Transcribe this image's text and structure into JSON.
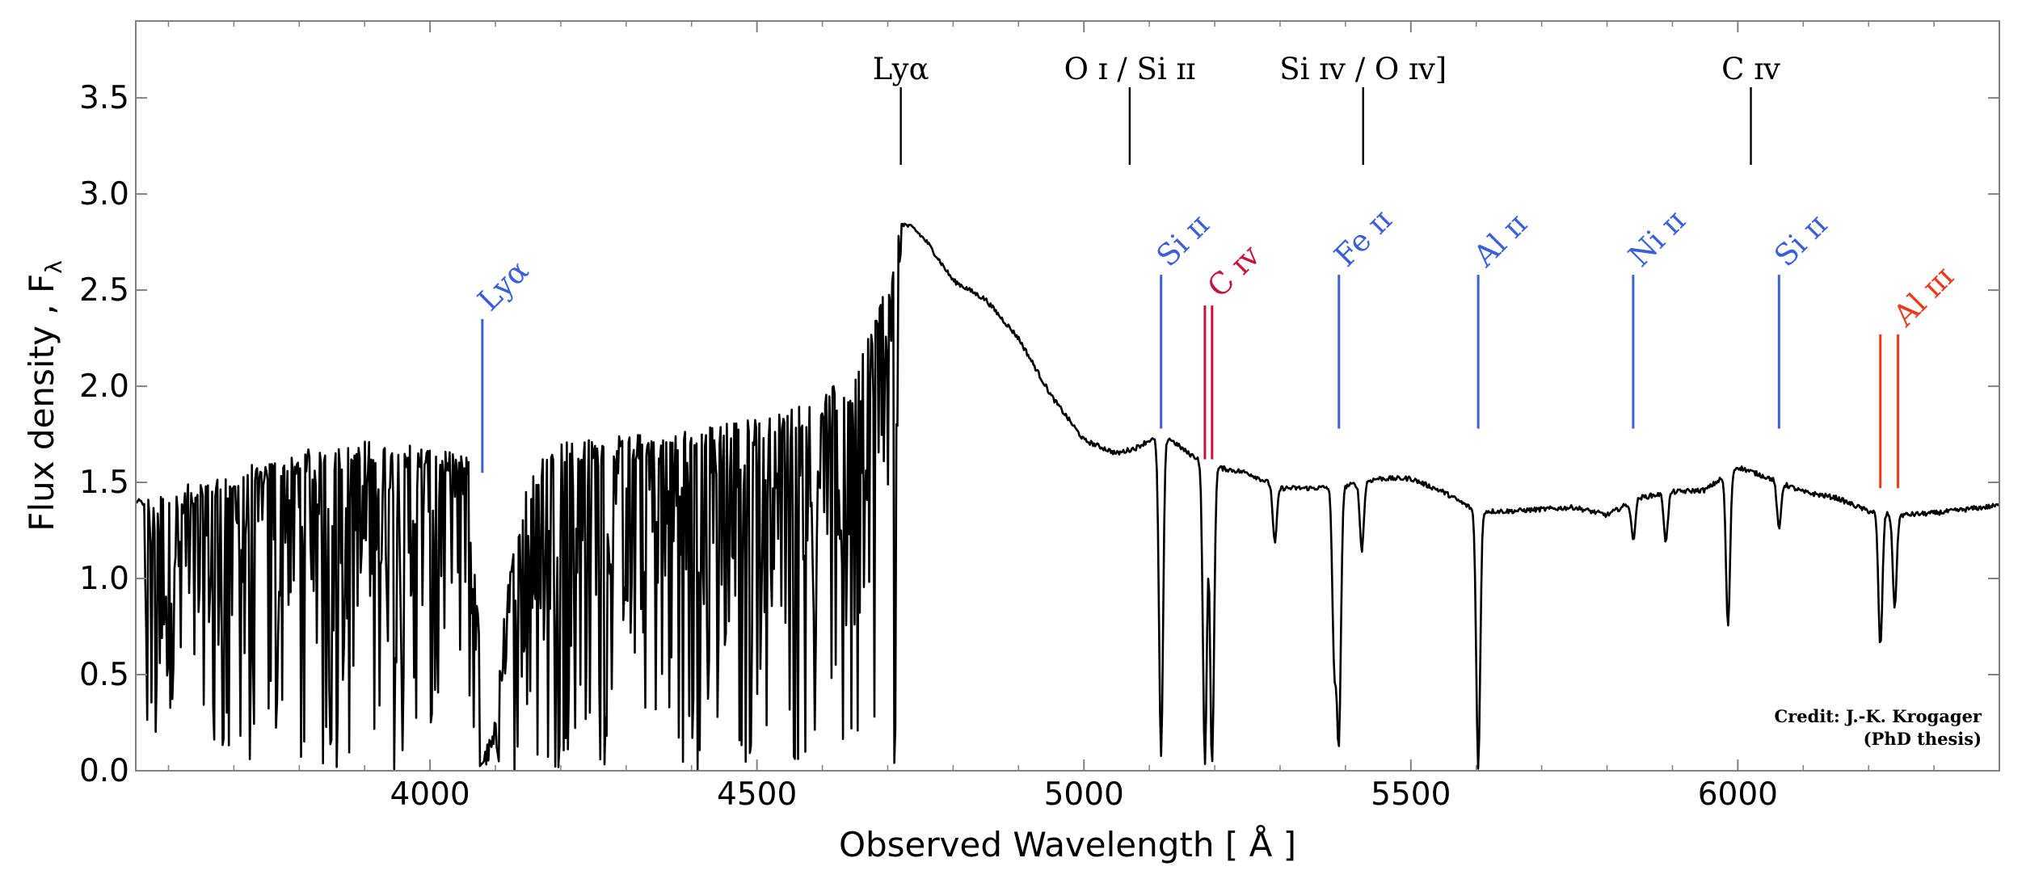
{
  "chart_data": {
    "type": "line",
    "xlabel": "Observed Wavelength [ Å ]",
    "ylabel": "Flux density , F",
    "ylabel_subscript": "λ",
    "xlim": [
      3550,
      6400
    ],
    "ylim": [
      0.0,
      3.9
    ],
    "x_ticks": [
      {
        "value": 4000,
        "label": "4000"
      },
      {
        "value": 4500,
        "label": "4500"
      },
      {
        "value": 5000,
        "label": "5000"
      },
      {
        "value": 5500,
        "label": "5500"
      },
      {
        "value": 6000,
        "label": "6000"
      }
    ],
    "y_ticks": [
      {
        "value": 0.0,
        "label": "0.0"
      },
      {
        "value": 0.5,
        "label": "0.5"
      },
      {
        "value": 1.0,
        "label": "1.0"
      },
      {
        "value": 1.5,
        "label": "1.5"
      },
      {
        "value": 2.0,
        "label": "2.0"
      },
      {
        "value": 2.5,
        "label": "2.5"
      },
      {
        "value": 3.0,
        "label": "3.0"
      },
      {
        "value": 3.5,
        "label": "3.5"
      }
    ],
    "grid": false,
    "series": [
      {
        "color": "#000000",
        "continuum": {
          "x": [
            3560,
            3700,
            3800,
            3900,
            4000,
            4060,
            4080,
            4100,
            4150,
            4200,
            4300,
            4400,
            4500,
            4550,
            4600,
            4650,
            4700,
            4720,
            4740,
            4760,
            4800,
            4850,
            4900,
            4950,
            5000,
            5050,
            5080,
            5100,
            5130,
            5160,
            5200,
            5250,
            5300,
            5350,
            5400,
            5450,
            5500,
            5550,
            5600,
            5650,
            5700,
            5750,
            5800,
            5850,
            5900,
            5950,
            6000,
            6050,
            6100,
            6150,
            6200,
            6250,
            6300,
            6350,
            6400
          ],
          "y": [
            1.4,
            1.55,
            1.65,
            1.7,
            1.68,
            1.62,
            0.4,
            0.6,
            1.55,
            1.7,
            1.73,
            1.76,
            1.82,
            1.88,
            1.95,
            2.05,
            2.55,
            2.85,
            2.82,
            2.75,
            2.55,
            2.45,
            2.25,
            1.95,
            1.72,
            1.65,
            1.68,
            1.72,
            1.73,
            1.65,
            1.58,
            1.55,
            1.47,
            1.47,
            1.48,
            1.52,
            1.52,
            1.45,
            1.35,
            1.35,
            1.36,
            1.37,
            1.33,
            1.42,
            1.45,
            1.46,
            1.58,
            1.52,
            1.45,
            1.42,
            1.35,
            1.33,
            1.34,
            1.36,
            1.38
          ]
        },
        "forest_range": [
          3560,
          4720
        ],
        "absorption_lines": [
          {
            "x": 5118,
            "depth": 1.65
          },
          {
            "x": 5185,
            "depth": 1.56
          },
          {
            "x": 5196,
            "depth": 1.56
          },
          {
            "x": 5292,
            "depth": 0.3
          },
          {
            "x": 5383,
            "depth": 0.9
          },
          {
            "x": 5390,
            "depth": 1.3
          },
          {
            "x": 5425,
            "depth": 0.35
          },
          {
            "x": 5603,
            "depth": 1.33
          },
          {
            "x": 5840,
            "depth": 0.2
          },
          {
            "x": 5890,
            "depth": 0.25
          },
          {
            "x": 5985,
            "depth": 0.8
          },
          {
            "x": 6063,
            "depth": 0.25
          },
          {
            "x": 6218,
            "depth": 0.7
          },
          {
            "x": 6240,
            "depth": 0.48
          }
        ]
      }
    ],
    "emission_annotations": [
      {
        "x": 4720,
        "label": "Lyα",
        "color": "#000000"
      },
      {
        "x": 5070,
        "label": "O ɪ / Si ɪɪ",
        "color": "#000000"
      },
      {
        "x": 5427,
        "label": "Si ɪᴠ / O ɪᴠ]",
        "color": "#000000"
      },
      {
        "x": 6020,
        "label": "C ɪᴠ",
        "color": "#000000"
      }
    ],
    "absorption_annotations": [
      {
        "x": [
          4080
        ],
        "label": "Lyα",
        "color": "#3b5fd6",
        "y_top": 2.35,
        "y_bottom": 1.55
      },
      {
        "x": [
          5118
        ],
        "label": "Si ɪɪ",
        "color": "#3b5fd6",
        "y_top": 2.58,
        "y_bottom": 1.78
      },
      {
        "x": [
          5185,
          5196
        ],
        "label": "C ɪᴠ",
        "color": "#c8103a",
        "y_top": 2.42,
        "y_bottom": 1.62
      },
      {
        "x": [
          5390
        ],
        "label": "Fe ɪɪ",
        "color": "#3b5fd6",
        "y_top": 2.58,
        "y_bottom": 1.78
      },
      {
        "x": [
          5603
        ],
        "label": "Al ɪɪ",
        "color": "#3b5fd6",
        "y_top": 2.58,
        "y_bottom": 1.78
      },
      {
        "x": [
          5840
        ],
        "label": "Ni ɪɪ",
        "color": "#3b5fd6",
        "y_top": 2.58,
        "y_bottom": 1.78
      },
      {
        "x": [
          6063
        ],
        "label": "Si ɪɪ",
        "color": "#3b5fd6",
        "y_top": 2.58,
        "y_bottom": 1.78
      },
      {
        "x": [
          6218,
          6245
        ],
        "label": "Al ɪɪɪ",
        "color": "#ea3a1a",
        "y_top": 2.27,
        "y_bottom": 1.47
      }
    ]
  },
  "credit": {
    "line1": "Credit: J.-K. Krogager",
    "line2": "(PhD thesis)"
  }
}
